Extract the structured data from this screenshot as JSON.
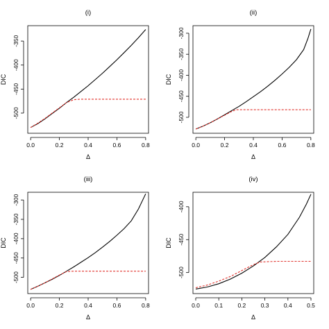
{
  "chart_data": [
    {
      "type": "line",
      "title": "(i)",
      "xlabel": "Δ",
      "ylabel": "DIC",
      "xlim": [
        -0.02,
        0.82
      ],
      "ylim": [
        -542,
        -318
      ],
      "xticks": [
        0.0,
        0.2,
        0.4,
        0.6,
        0.8
      ],
      "xtick_labels": [
        "0.0",
        "0.2",
        "0.4",
        "0.6",
        "0.8"
      ],
      "yticks": [
        -500,
        -450,
        -400,
        -350
      ],
      "ytick_labels": [
        "-500",
        "-450",
        "-400",
        "-350"
      ],
      "grid": false,
      "series": [
        {
          "style": "solid",
          "color": "#000000",
          "x": [
            0.0,
            0.05,
            0.1,
            0.15,
            0.2,
            0.25,
            0.3,
            0.35,
            0.4,
            0.45,
            0.5,
            0.55,
            0.6,
            0.65,
            0.7,
            0.75,
            0.8
          ],
          "y": [
            -530,
            -522,
            -512,
            -501,
            -490,
            -478,
            -467,
            -455,
            -443,
            -430,
            -417,
            -403,
            -389,
            -374,
            -359,
            -343,
            -326
          ]
        },
        {
          "style": "dashed",
          "color": "#e0302a",
          "x": [
            0.0,
            0.05,
            0.1,
            0.15,
            0.2,
            0.25,
            0.3,
            0.35,
            0.4,
            0.5,
            0.6,
            0.7,
            0.8
          ],
          "y": [
            -530,
            -521,
            -511,
            -500,
            -489,
            -478,
            -472,
            -471,
            -471,
            -471,
            -471,
            -471,
            -471
          ]
        }
      ]
    },
    {
      "type": "line",
      "title": "(ii)",
      "xlabel": "Δ",
      "ylabel": "DIC",
      "xlim": [
        -0.02,
        0.82
      ],
      "ylim": [
        -538,
        -282
      ],
      "xticks": [
        0.0,
        0.2,
        0.4,
        0.6,
        0.8
      ],
      "xtick_labels": [
        "0.0",
        "0.2",
        "0.4",
        "0.6",
        "0.8"
      ],
      "yticks": [
        -500,
        -450,
        -400,
        -350,
        -300
      ],
      "ytick_labels": [
        "-500",
        "-450",
        "-400",
        "-350",
        "-300"
      ],
      "grid": false,
      "series": [
        {
          "style": "solid",
          "color": "#000000",
          "x": [
            0.0,
            0.05,
            0.1,
            0.15,
            0.2,
            0.25,
            0.3,
            0.35,
            0.4,
            0.45,
            0.5,
            0.55,
            0.6,
            0.65,
            0.7,
            0.75,
            0.78,
            0.8
          ],
          "y": [
            -528,
            -521,
            -513,
            -504,
            -494,
            -484,
            -474,
            -463,
            -451,
            -439,
            -426,
            -412,
            -397,
            -381,
            -363,
            -339,
            -312,
            -290
          ]
        },
        {
          "style": "dashed",
          "color": "#e0302a",
          "x": [
            0.0,
            0.05,
            0.1,
            0.15,
            0.2,
            0.25,
            0.28,
            0.35,
            0.4,
            0.5,
            0.6,
            0.7,
            0.8
          ],
          "y": [
            -528,
            -521,
            -513,
            -504,
            -495,
            -486,
            -482,
            -482,
            -482,
            -482,
            -482,
            -482,
            -482
          ]
        }
      ]
    },
    {
      "type": "line",
      "title": "(iii)",
      "xlabel": "Δ",
      "ylabel": "DIC",
      "xlim": [
        -0.02,
        0.82
      ],
      "ylim": [
        -542,
        -280
      ],
      "xticks": [
        0.0,
        0.2,
        0.4,
        0.6,
        0.8
      ],
      "xtick_labels": [
        "0.0",
        "0.2",
        "0.4",
        "0.6",
        "0.8"
      ],
      "yticks": [
        -500,
        -450,
        -400,
        -350,
        -300
      ],
      "ytick_labels": [
        "-500",
        "-450",
        "-400",
        "-350",
        "-300"
      ],
      "grid": false,
      "series": [
        {
          "style": "solid",
          "color": "#000000",
          "x": [
            0.0,
            0.05,
            0.1,
            0.15,
            0.2,
            0.25,
            0.3,
            0.35,
            0.4,
            0.45,
            0.5,
            0.55,
            0.6,
            0.65,
            0.7,
            0.75,
            0.8
          ],
          "y": [
            -531,
            -523,
            -514,
            -505,
            -495,
            -484,
            -473,
            -461,
            -449,
            -436,
            -422,
            -407,
            -391,
            -374,
            -354,
            -323,
            -284
          ]
        },
        {
          "style": "dashed",
          "color": "#e0302a",
          "x": [
            0.0,
            0.05,
            0.1,
            0.15,
            0.2,
            0.25,
            0.3,
            0.4,
            0.5,
            0.6,
            0.7,
            0.8
          ],
          "y": [
            -531,
            -523,
            -514,
            -504,
            -494,
            -485,
            -484,
            -484,
            -484,
            -484,
            -484,
            -484
          ]
        }
      ]
    },
    {
      "type": "line",
      "title": "(iv)",
      "xlabel": "Δ",
      "ylabel": "DIC",
      "xlim": [
        -0.012,
        0.512
      ],
      "ylim": [
        -532,
        -378
      ],
      "xticks": [
        0.0,
        0.1,
        0.2,
        0.3,
        0.4,
        0.5
      ],
      "xtick_labels": [
        "0.0",
        "0.1",
        "0.2",
        "0.3",
        "0.4",
        "0.5"
      ],
      "yticks": [
        -500,
        -450,
        -400
      ],
      "ytick_labels": [
        "-500",
        "-450",
        "-400"
      ],
      "grid": false,
      "series": [
        {
          "style": "solid",
          "color": "#000000",
          "x": [
            0.0,
            0.05,
            0.1,
            0.15,
            0.2,
            0.25,
            0.3,
            0.35,
            0.4,
            0.45,
            0.48,
            0.5
          ],
          "y": [
            -525,
            -522,
            -517,
            -510,
            -501,
            -490,
            -477,
            -461,
            -442,
            -416,
            -396,
            -381
          ]
        },
        {
          "style": "dashed",
          "color": "#e0302a",
          "x": [
            0.0,
            0.05,
            0.1,
            0.15,
            0.2,
            0.25,
            0.28,
            0.35,
            0.4,
            0.45,
            0.5
          ],
          "y": [
            -523,
            -519,
            -513,
            -506,
            -497,
            -488,
            -484,
            -483,
            -483,
            -483,
            -483
          ]
        }
      ]
    }
  ]
}
